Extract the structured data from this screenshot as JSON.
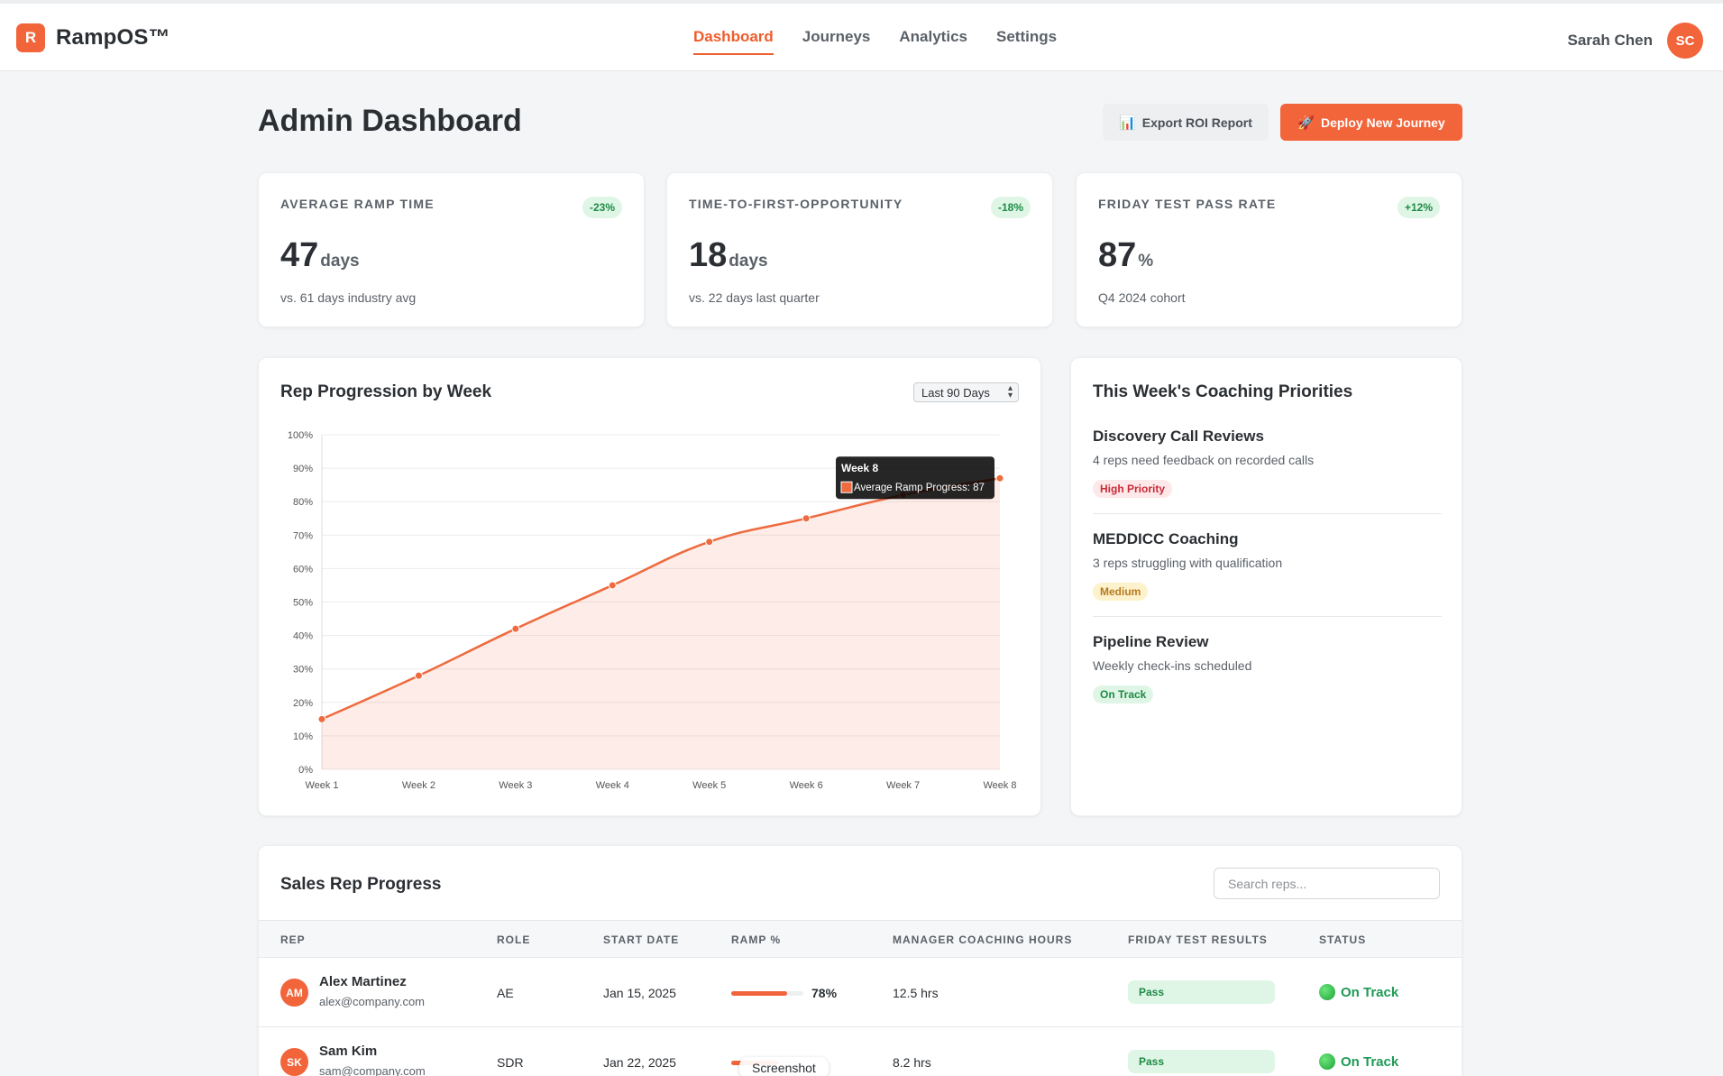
{
  "app": {
    "logo_letter": "R",
    "name": "RampOS™"
  },
  "nav": [
    {
      "label": "Dashboard",
      "active": true
    },
    {
      "label": "Journeys",
      "active": false
    },
    {
      "label": "Analytics",
      "active": false
    },
    {
      "label": "Settings",
      "active": false
    }
  ],
  "user": {
    "name": "Sarah Chen",
    "initials": "SC"
  },
  "page": {
    "title": "Admin Dashboard",
    "export_icon": "📊",
    "export_label": "Export ROI Report",
    "deploy_icon": "🚀",
    "deploy_label": "Deploy New Journey"
  },
  "kpis": [
    {
      "label": "Average Ramp Time",
      "badge": "-23%",
      "value": "47",
      "unit": "days",
      "sub": "vs. 61 days industry avg"
    },
    {
      "label": "Time-to-First-Opportunity",
      "badge": "-18%",
      "value": "18",
      "unit": "days",
      "sub": "vs. 22 days last quarter"
    },
    {
      "label": "Friday Test Pass Rate",
      "badge": "+12%",
      "value": "87",
      "unit": "%",
      "sub": "Q4 2024 cohort"
    }
  ],
  "progression": {
    "title": "Rep Progression by Week",
    "range": "Last 90 Days"
  },
  "chart_data": {
    "type": "area",
    "categories": [
      "Week 1",
      "Week 2",
      "Week 3",
      "Week 4",
      "Week 5",
      "Week 6",
      "Week 7",
      "Week 8"
    ],
    "series": [
      {
        "name": "Average Ramp Progress",
        "values": [
          15,
          28,
          42,
          55,
          68,
          75,
          82,
          87
        ],
        "color": "#ee6a3f"
      }
    ],
    "ylim": [
      0,
      100
    ],
    "yticks": [
      "0%",
      "10%",
      "20%",
      "30%",
      "40%",
      "50%",
      "60%",
      "70%",
      "80%",
      "90%",
      "100%"
    ],
    "tooltip": {
      "title": "Week 8",
      "label": "Average Ramp Progress: 87"
    },
    "grid": true
  },
  "coaching": {
    "title": "This Week's Coaching Priorities",
    "items": [
      {
        "title": "Discovery Call Reviews",
        "desc": "4 reps need feedback on recorded calls",
        "tag": "High Priority",
        "tag_type": "high"
      },
      {
        "title": "MEDDICC Coaching",
        "desc": "3 reps struggling with qualification",
        "tag": "Medium",
        "tag_type": "medium"
      },
      {
        "title": "Pipeline Review",
        "desc": "Weekly check-ins scheduled",
        "tag": "On Track",
        "tag_type": "ontrack"
      }
    ]
  },
  "reps": {
    "title": "Sales Rep Progress",
    "search_placeholder": "Search reps...",
    "columns": [
      "REP",
      "ROLE",
      "START DATE",
      "RAMP %",
      "MANAGER COACHING HOURS",
      "FRIDAY TEST RESULTS",
      "STATUS"
    ],
    "rows": [
      {
        "initials": "AM",
        "name": "Alex Martinez",
        "email": "alex@company.com",
        "role": "AE",
        "start": "Jan 15, 2025",
        "ramp": 78,
        "ramp_label": "78%",
        "hours": "12.5 hrs",
        "result": "Pass",
        "status": "On Track"
      },
      {
        "initials": "SK",
        "name": "Sam Kim",
        "email": "sam@company.com",
        "role": "SDR",
        "start": "Jan 22, 2025",
        "ramp": 65,
        "ramp_label": "",
        "hours": "8.2 hrs",
        "result": "Pass",
        "status": "On Track"
      }
    ]
  },
  "overlay_label": "Screenshot",
  "colors": {
    "accent": "#f2643a",
    "success": "#1e8a45",
    "danger": "#c92a35",
    "warning": "#b7791f"
  }
}
